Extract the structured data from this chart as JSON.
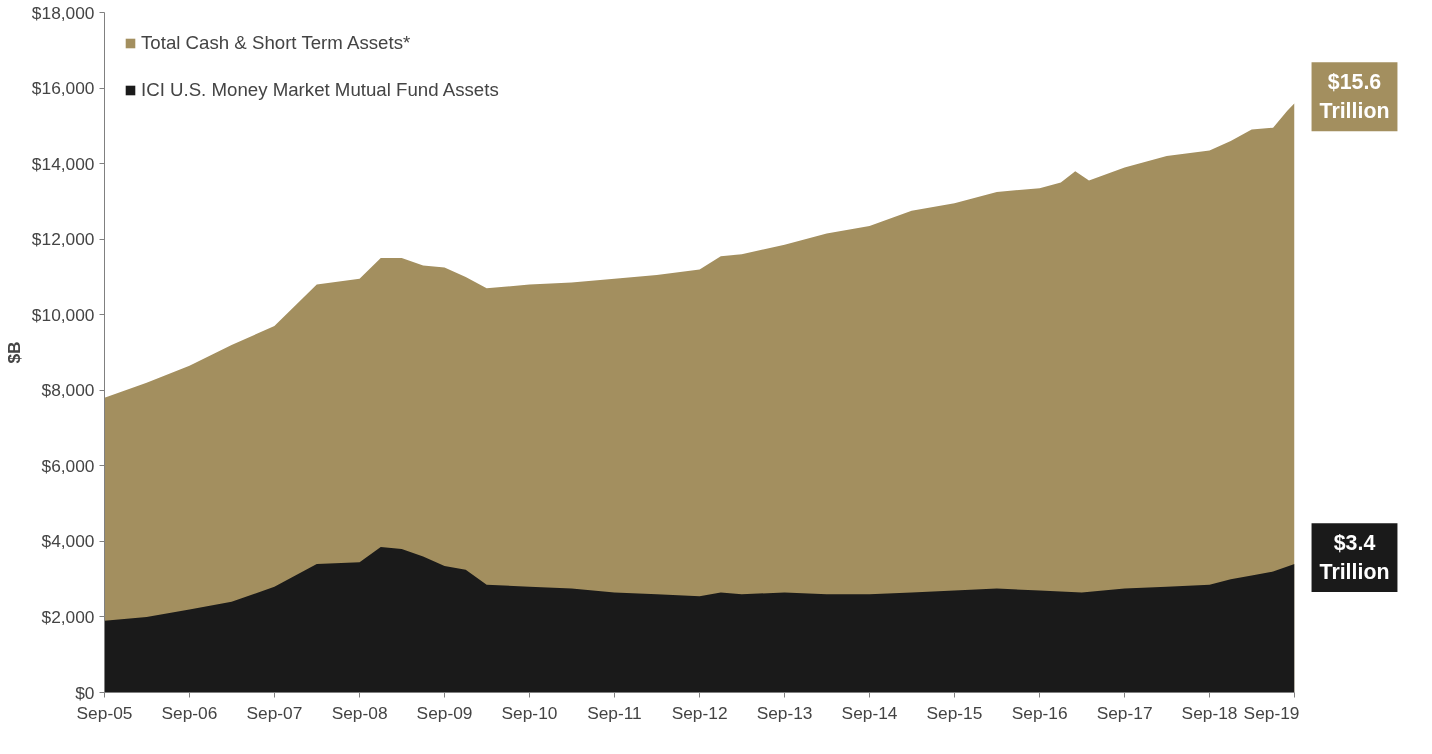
{
  "chart_data": {
    "type": "area",
    "ylabel": "$B",
    "legend": "top left",
    "grid": false,
    "xlim": [
      "2005-09",
      "2019-09"
    ],
    "xticks": [
      {
        "value": "2005-09",
        "label": "Sep-05"
      },
      {
        "value": "2006-09",
        "label": "Sep-06"
      },
      {
        "value": "2007-09",
        "label": "Sep-07"
      },
      {
        "value": "2008-09",
        "label": "Sep-08"
      },
      {
        "value": "2009-09",
        "label": "Sep-09"
      },
      {
        "value": "2010-09",
        "label": "Sep-10"
      },
      {
        "value": "2011-09",
        "label": "Sep-11"
      },
      {
        "value": "2012-09",
        "label": "Sep-12"
      },
      {
        "value": "2013-09",
        "label": "Sep-13"
      },
      {
        "value": "2014-09",
        "label": "Sep-14"
      },
      {
        "value": "2015-09",
        "label": "Sep-15"
      },
      {
        "value": "2016-09",
        "label": "Sep-16"
      },
      {
        "value": "2017-09",
        "label": "Sep-17"
      },
      {
        "value": "2018-09",
        "label": "Sep-18"
      },
      {
        "value": "2019-09",
        "label": "Sep-19"
      }
    ],
    "ylim": [
      0,
      18000
    ],
    "yticks": [
      {
        "value": 0,
        "label": "$0"
      },
      {
        "value": 2000,
        "label": "$2,000"
      },
      {
        "value": 4000,
        "label": "$4,000"
      },
      {
        "value": 6000,
        "label": "$6,000"
      },
      {
        "value": 8000,
        "label": "$8,000"
      },
      {
        "value": 10000,
        "label": "$10,000"
      },
      {
        "value": 12000,
        "label": "$12,000"
      },
      {
        "value": 14000,
        "label": "$14,000"
      },
      {
        "value": 16000,
        "label": "$16,000"
      },
      {
        "value": 18000,
        "label": "$18,000"
      }
    ],
    "series": [
      {
        "name": "Total Cash & Short Term Assets*",
        "color": "#a38f5f",
        "x": [
          "2005-09",
          "2006-03",
          "2006-09",
          "2007-03",
          "2007-09",
          "2007-12",
          "2008-03",
          "2008-09",
          "2008-12",
          "2009-03",
          "2009-06",
          "2009-09",
          "2009-12",
          "2010-03",
          "2010-09",
          "2011-03",
          "2011-09",
          "2012-03",
          "2012-09",
          "2012-12",
          "2013-03",
          "2013-09",
          "2014-03",
          "2014-09",
          "2015-03",
          "2015-09",
          "2016-03",
          "2016-09",
          "2016-12",
          "2017-02",
          "2017-04",
          "2017-09",
          "2018-03",
          "2018-09",
          "2018-12",
          "2019-03",
          "2019-06",
          "2019-08",
          "2019-09"
        ],
        "values": [
          7800,
          8200,
          8650,
          9200,
          9700,
          10250,
          10800,
          10950,
          11500,
          11500,
          11300,
          11250,
          11000,
          10700,
          10800,
          10850,
          10950,
          11050,
          11200,
          11550,
          11600,
          11850,
          12150,
          12350,
          12750,
          12950,
          13250,
          13350,
          13500,
          13800,
          13550,
          13900,
          14200,
          14350,
          14600,
          14900,
          14950,
          15400,
          15600
        ]
      },
      {
        "name": "ICI U.S. Money Market Mutual Fund Assets",
        "color": "#1a1a1a",
        "x": [
          "2005-09",
          "2006-03",
          "2006-09",
          "2007-03",
          "2007-09",
          "2008-03",
          "2008-09",
          "2008-12",
          "2009-03",
          "2009-06",
          "2009-09",
          "2009-12",
          "2010-03",
          "2010-09",
          "2011-03",
          "2011-09",
          "2012-03",
          "2012-09",
          "2012-12",
          "2013-03",
          "2013-09",
          "2014-03",
          "2014-09",
          "2015-03",
          "2015-09",
          "2016-03",
          "2016-09",
          "2017-03",
          "2017-09",
          "2018-03",
          "2018-09",
          "2018-12",
          "2019-03",
          "2019-06",
          "2019-09"
        ],
        "values": [
          1900,
          2000,
          2200,
          2400,
          2800,
          3400,
          3450,
          3850,
          3800,
          3600,
          3350,
          3250,
          2850,
          2800,
          2750,
          2650,
          2600,
          2550,
          2650,
          2600,
          2650,
          2600,
          2600,
          2650,
          2700,
          2750,
          2700,
          2650,
          2750,
          2800,
          2850,
          3000,
          3100,
          3200,
          3400
        ]
      }
    ],
    "annotations": [
      {
        "text": "$15.6\nTrillion",
        "x": "2019-09",
        "y": 15600
      },
      {
        "text": "$3.4\nTrillion",
        "x": "2019-09",
        "y": 3400
      }
    ]
  }
}
